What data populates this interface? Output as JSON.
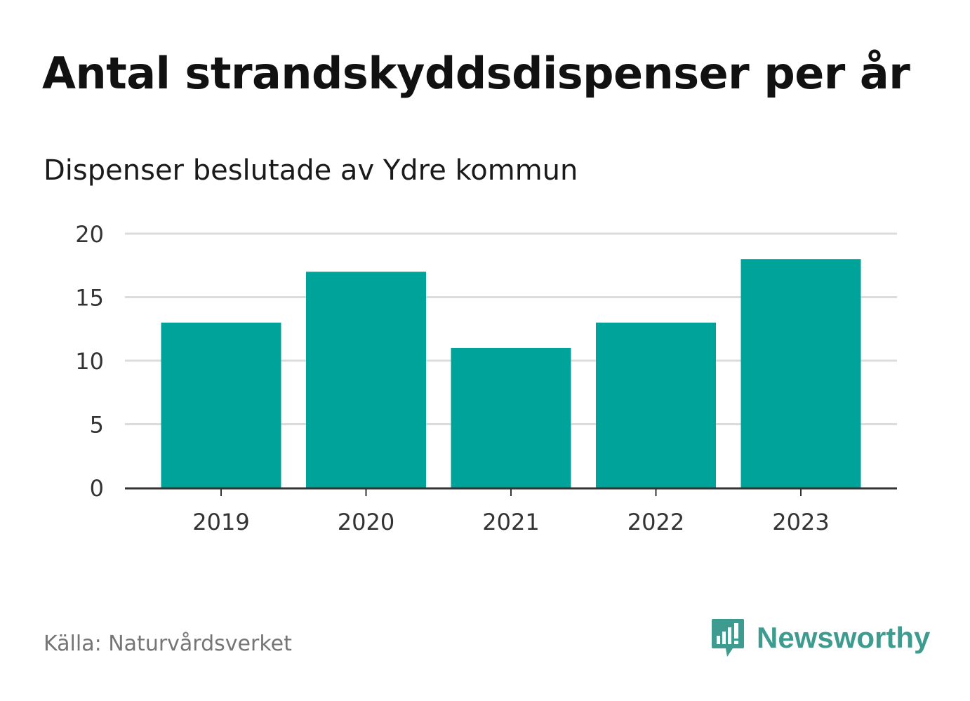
{
  "header": {
    "title": "Antal strandskyddsdispenser per år",
    "subtitle": "Dispenser beslutade av Ydre kommun"
  },
  "footer": {
    "source": "Källa: Naturvårdsverket",
    "brand": "Newsworthy",
    "brand_icon": "bar-chart-speech-bubble-icon"
  },
  "colors": {
    "bar": "#00a39a",
    "grid": "#dcdcdc",
    "axis": "#333333",
    "brand": "#3d9c8f"
  },
  "chart_data": {
    "type": "bar",
    "title": "Antal strandskyddsdispenser per år",
    "subtitle": "Dispenser beslutade av Ydre kommun",
    "categories": [
      "2019",
      "2020",
      "2021",
      "2022",
      "2023"
    ],
    "values": [
      13,
      17,
      11,
      13,
      18
    ],
    "xlabel": "",
    "ylabel": "",
    "ylim": [
      0,
      20
    ],
    "yticks": [
      0,
      5,
      10,
      15,
      20
    ],
    "grid": true,
    "legend": "none"
  }
}
